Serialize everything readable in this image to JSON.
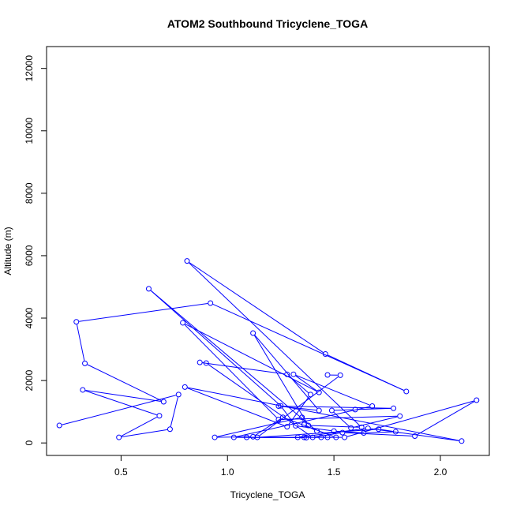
{
  "chart_data": {
    "type": "line",
    "title": "ATOM2 Southbound Tricyclene_TOGA",
    "xlabel": "Tricyclene_TOGA",
    "ylabel": "Altitude (m)",
    "xlim": [
      0.15,
      2.23
    ],
    "ylim": [
      -400,
      12700
    ],
    "x_ticks": [
      0.5,
      1.0,
      1.5,
      2.0
    ],
    "x_tick_labels": [
      "0.5",
      "1.0",
      "1.5",
      "2.0"
    ],
    "y_ticks": [
      0,
      2000,
      4000,
      6000,
      8000,
      10000,
      12000
    ],
    "y_tick_labels": [
      "0",
      "2000",
      "4000",
      "6000",
      "8000",
      "10000",
      "12000"
    ],
    "grid": false,
    "marker": "open-circle",
    "series": [
      {
        "color": "#0000ff",
        "x": [
          0.21,
          0.77,
          0.73,
          0.49,
          0.68,
          0.32,
          0.7,
          0.33,
          0.29,
          0.92,
          1.84,
          1.46,
          0.81,
          1.63,
          1.38,
          1.12,
          1.43,
          1.24,
          1.78,
          1.6,
          1.49,
          1.58,
          1.81,
          1.24,
          0.79,
          1.43,
          1.31,
          1.68,
          1.03,
          1.37,
          1.09,
          1.44,
          1.55,
          2.17,
          1.88,
          1.54,
          1.4,
          0.9,
          0.87,
          1.28,
          1.39,
          1.28,
          0.8,
          2.1,
          1.66,
          1.33,
          1.36,
          1.47,
          1.51,
          1.26,
          1.12,
          0.94,
          1.35,
          1.36,
          1.42,
          0.63,
          1.25,
          1.32,
          1.5,
          1.64,
          1.79,
          1.71,
          1.14,
          1.53,
          1.47
        ],
        "y": [
          560,
          1550,
          440,
          180,
          870,
          1700,
          1320,
          2550,
          3880,
          4480,
          1650,
          2850,
          5830,
          500,
          560,
          3520,
          1040,
          1180,
          1110,
          1070,
          1040,
          480,
          860,
          750,
          3850,
          1620,
          2200,
          1180,
          180,
          170,
          180,
          180,
          180,
          1370,
          220,
          330,
          180,
          2560,
          2580,
          2200,
          1550,
          520,
          1790,
          60,
          470,
          180,
          180,
          180,
          180,
          820,
          200,
          180,
          820,
          590,
          380,
          4940,
          1190,
          550,
          380,
          320,
          360,
          440,
          180,
          2170,
          2180
        ]
      }
    ]
  }
}
